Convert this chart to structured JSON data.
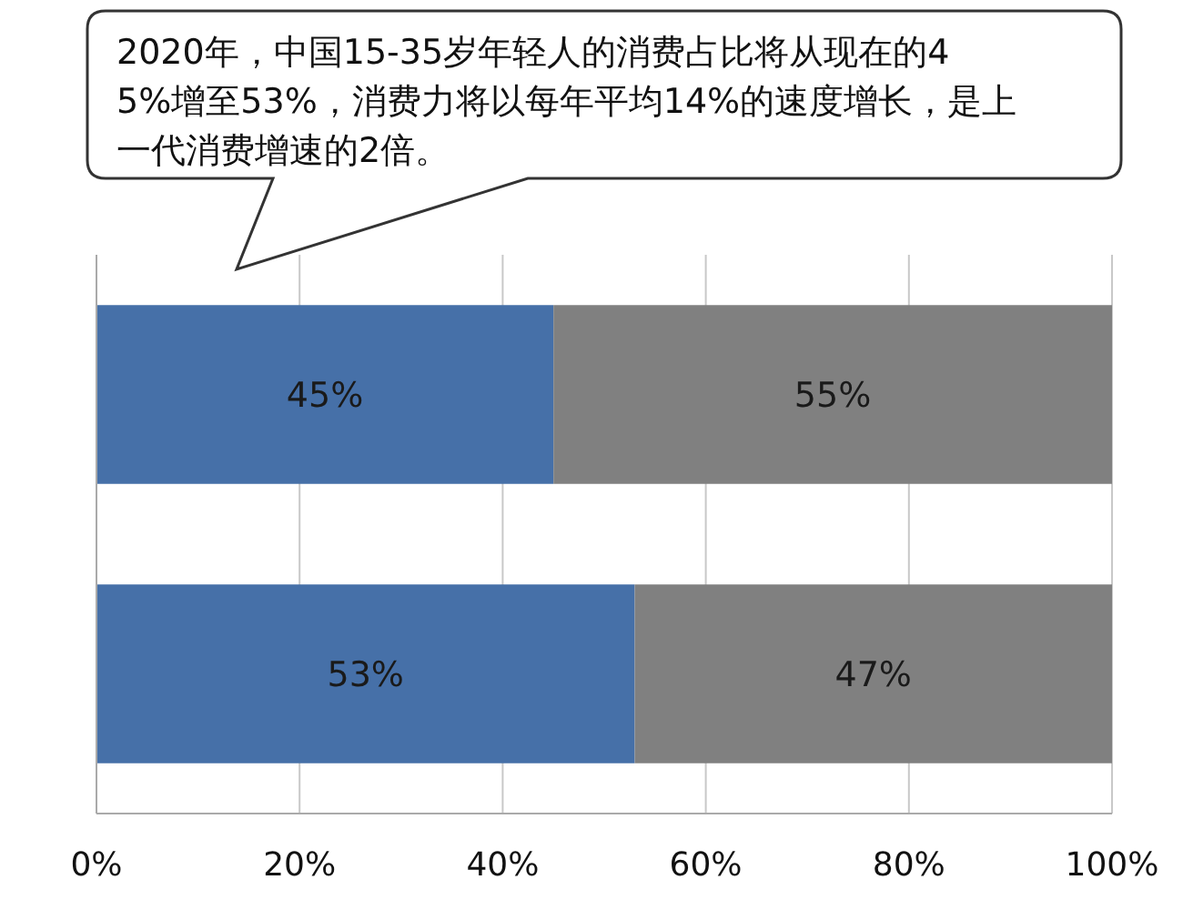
{
  "chart_data": {
    "type": "bar",
    "orientation": "horizontal",
    "stacked": true,
    "annotations": [
      "2020年，中国15-35岁年轻人的消费占比将从现在的45%增至53%，消费力将以每年平均14%的速度增长，是上一代消费增速的2倍。"
    ],
    "categories": [
      null,
      null
    ],
    "series": [
      {
        "color": "#4670a8",
        "values": [
          45,
          53
        ],
        "value_labels": [
          "45%",
          "53%"
        ]
      },
      {
        "color": "#808080",
        "values": [
          55,
          47
        ],
        "value_labels": [
          "55%",
          "47%"
        ]
      }
    ],
    "xlim": [
      0,
      100
    ],
    "xticks": [
      {
        "value": 0,
        "label": "0%"
      },
      {
        "value": 20,
        "label": "20%"
      },
      {
        "value": 40,
        "label": "40%"
      },
      {
        "value": 60,
        "label": "60%"
      },
      {
        "value": 80,
        "label": "80%"
      },
      {
        "value": 100,
        "label": "100%"
      }
    ],
    "grid": "x",
    "tick_labels": "x"
  }
}
